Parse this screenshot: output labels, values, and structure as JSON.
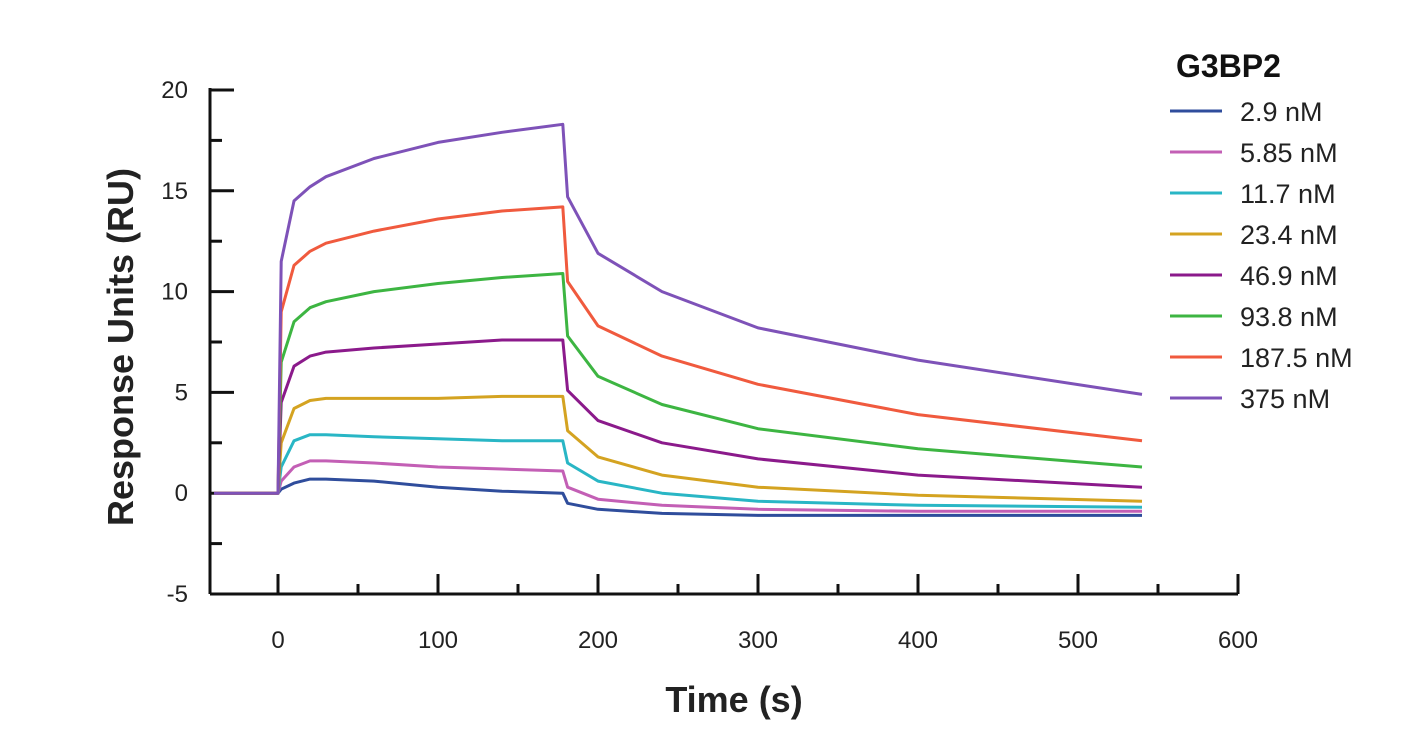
{
  "chart_data": {
    "type": "line",
    "xlabel": "Time (s)",
    "ylabel": "Response Units (RU)",
    "xlim": [
      -45,
      600
    ],
    "ylim": [
      -5,
      20
    ],
    "xticks": [
      0,
      100,
      200,
      300,
      400,
      500,
      600
    ],
    "yticks": [
      -5,
      0,
      5,
      10,
      15,
      20
    ],
    "legend_title": "G3BP2",
    "legend_position": "top-right",
    "grid": false,
    "series": [
      {
        "name": "2.9 nM",
        "color": "#2f4d9c",
        "x": [
          -40,
          0,
          2,
          10,
          20,
          30,
          60,
          100,
          140,
          178,
          181,
          200,
          240,
          300,
          400,
          540
        ],
        "y": [
          0,
          0,
          0.2,
          0.5,
          0.7,
          0.7,
          0.6,
          0.3,
          0.1,
          0.0,
          -0.5,
          -0.8,
          -1.0,
          -1.1,
          -1.1,
          -1.1
        ]
      },
      {
        "name": "5.85 nM",
        "color": "#c35fb5",
        "x": [
          -40,
          0,
          2,
          10,
          20,
          30,
          60,
          100,
          140,
          178,
          181,
          200,
          240,
          300,
          400,
          540
        ],
        "y": [
          0,
          0,
          0.6,
          1.3,
          1.6,
          1.6,
          1.5,
          1.3,
          1.2,
          1.1,
          0.3,
          -0.3,
          -0.6,
          -0.8,
          -0.9,
          -0.9
        ]
      },
      {
        "name": "11.7 nM",
        "color": "#29b6c5",
        "x": [
          -40,
          0,
          2,
          10,
          20,
          30,
          60,
          100,
          140,
          178,
          181,
          200,
          240,
          300,
          400,
          540
        ],
        "y": [
          0,
          0,
          1.3,
          2.6,
          2.9,
          2.9,
          2.8,
          2.7,
          2.6,
          2.6,
          1.5,
          0.6,
          0.0,
          -0.4,
          -0.6,
          -0.7
        ]
      },
      {
        "name": "23.4 nM",
        "color": "#d4a321",
        "x": [
          -40,
          0,
          2,
          10,
          20,
          30,
          60,
          100,
          140,
          178,
          181,
          200,
          240,
          300,
          400,
          540
        ],
        "y": [
          0,
          0,
          2.5,
          4.2,
          4.6,
          4.7,
          4.7,
          4.7,
          4.8,
          4.8,
          3.1,
          1.8,
          0.9,
          0.3,
          -0.1,
          -0.4
        ]
      },
      {
        "name": "46.9 nM",
        "color": "#8b1a8b",
        "x": [
          -40,
          0,
          2,
          10,
          20,
          30,
          60,
          100,
          140,
          178,
          181,
          200,
          240,
          300,
          400,
          540
        ],
        "y": [
          0,
          0,
          4.5,
          6.3,
          6.8,
          7.0,
          7.2,
          7.4,
          7.6,
          7.6,
          5.1,
          3.6,
          2.5,
          1.7,
          0.9,
          0.3
        ]
      },
      {
        "name": "93.8 nM",
        "color": "#3db542",
        "x": [
          -40,
          0,
          2,
          10,
          20,
          30,
          60,
          100,
          140,
          178,
          181,
          200,
          240,
          300,
          400,
          540
        ],
        "y": [
          0,
          0,
          6.5,
          8.5,
          9.2,
          9.5,
          10.0,
          10.4,
          10.7,
          10.9,
          7.8,
          5.8,
          4.4,
          3.2,
          2.2,
          1.3
        ]
      },
      {
        "name": "187.5 nM",
        "color": "#f05a3e",
        "x": [
          -40,
          0,
          2,
          10,
          20,
          30,
          60,
          100,
          140,
          178,
          181,
          200,
          240,
          300,
          400,
          540
        ],
        "y": [
          0,
          0,
          9.0,
          11.3,
          12.0,
          12.4,
          13.0,
          13.6,
          14.0,
          14.2,
          10.5,
          8.3,
          6.8,
          5.4,
          3.9,
          2.6
        ]
      },
      {
        "name": "375 nM",
        "color": "#7e52b8",
        "x": [
          -40,
          0,
          2,
          10,
          20,
          30,
          60,
          100,
          140,
          178,
          181,
          200,
          240,
          300,
          400,
          540
        ],
        "y": [
          0,
          0,
          11.5,
          14.5,
          15.2,
          15.7,
          16.6,
          17.4,
          17.9,
          18.3,
          14.7,
          11.9,
          10.0,
          8.2,
          6.6,
          4.9
        ]
      }
    ]
  }
}
